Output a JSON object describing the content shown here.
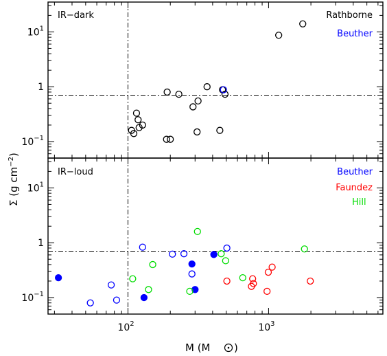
{
  "chart_data": [
    {
      "type": "scatter",
      "panel": "IR-dark",
      "xlog": true,
      "ylog": true,
      "xlim": [
        27,
        6500
      ],
      "ylim": [
        0.05,
        35
      ],
      "xlabel": "M (M⊙)",
      "ylabel": "Σ (g cm⁻²)",
      "x_ticks": [
        {
          "value": 100,
          "label": "10",
          "exp": "2"
        },
        {
          "value": 1000,
          "label": "10",
          "exp": "3"
        }
      ],
      "y_ticks": [
        {
          "value": 0.1,
          "label": "10",
          "exp": "−1"
        },
        {
          "value": 1,
          "label": "1",
          "exp": ""
        },
        {
          "value": 10,
          "label": "10",
          "exp": "1"
        }
      ],
      "reference_lines": {
        "vertical_x": 100,
        "horizontal_y": 0.7
      },
      "series": [
        {
          "name": "Rathborne",
          "color": "#000000",
          "marker": "open-circle",
          "x": [
            1750,
            1180,
            490,
            365,
            470,
            315,
            230,
            190,
            290,
            450,
            310,
            200,
            188,
            115,
            118,
            120,
            127,
            110,
            106
          ],
          "y": [
            14,
            8.7,
            0.73,
            1.0,
            0.88,
            0.55,
            0.73,
            0.8,
            0.43,
            0.16,
            0.15,
            0.11,
            0.11,
            0.33,
            0.25,
            0.18,
            0.2,
            0.14,
            0.16
          ]
        },
        {
          "name": "Beuther",
          "color": "#0000ff",
          "marker": "open-circle",
          "x": [
            478
          ],
          "y": [
            0.88
          ]
        }
      ]
    },
    {
      "type": "scatter",
      "panel": "IR-loud",
      "xlog": true,
      "ylog": true,
      "xlim": [
        27,
        6500
      ],
      "ylim": [
        0.05,
        35
      ],
      "xlabel": "M (M⊙)",
      "ylabel": "Σ (g cm⁻²)",
      "x_ticks": [
        {
          "value": 100,
          "label": "10",
          "exp": "2"
        },
        {
          "value": 1000,
          "label": "10",
          "exp": "3"
        }
      ],
      "y_ticks": [
        {
          "value": 0.1,
          "label": "10",
          "exp": "−1"
        },
        {
          "value": 1,
          "label": "1",
          "exp": ""
        },
        {
          "value": 10,
          "label": "10",
          "exp": "1"
        }
      ],
      "reference_lines": {
        "vertical_x": 100,
        "horizontal_y": 0.7
      },
      "series": [
        {
          "name": "Beuther",
          "color": "#0000ff",
          "marker": "open-circle",
          "x": [
            54,
            76,
            83,
            127,
            207,
            250,
            285,
            505
          ],
          "y": [
            0.08,
            0.17,
            0.09,
            0.83,
            0.62,
            0.63,
            0.27,
            0.8
          ]
        },
        {
          "name": "Beuther (filled)",
          "color": "#0000ff",
          "marker": "filled-circle",
          "x": [
            32,
            130,
            285,
            300,
            408
          ],
          "y": [
            0.23,
            0.1,
            0.41,
            0.14,
            0.61
          ]
        },
        {
          "name": "Faundez",
          "color": "#ff0000",
          "marker": "open-circle",
          "x": [
            505,
            755,
            780,
            770,
            975,
            1060,
            1980,
            995
          ],
          "y": [
            0.2,
            0.16,
            0.18,
            0.22,
            0.13,
            0.36,
            0.2,
            0.29
          ]
        },
        {
          "name": "Hill",
          "color": "#00dd00",
          "marker": "open-circle",
          "x": [
            108,
            140,
            150,
            275,
            312,
            460,
            495,
            655,
            1800
          ],
          "y": [
            0.22,
            0.14,
            0.4,
            0.13,
            1.6,
            0.63,
            0.47,
            0.23,
            0.77
          ]
        }
      ]
    }
  ],
  "panel_labels": {
    "top": "IR−dark",
    "bottom": "IR−loud"
  },
  "axis": {
    "xlabel": "M (M",
    "ylabel_main": "Σ (g cm",
    "ylabel_exp": "−2",
    "ylabel_close": ")"
  },
  "legend": {
    "top": [
      {
        "label": "Rathborne",
        "color": "#000000"
      },
      {
        "label": "Beuther",
        "color": "#0000ff"
      }
    ],
    "bottom": [
      {
        "label": "Beuther",
        "color": "#0000ff"
      },
      {
        "label": "Faundez",
        "color": "#ff0000"
      },
      {
        "label": "Hill",
        "color": "#00dd00"
      }
    ]
  }
}
